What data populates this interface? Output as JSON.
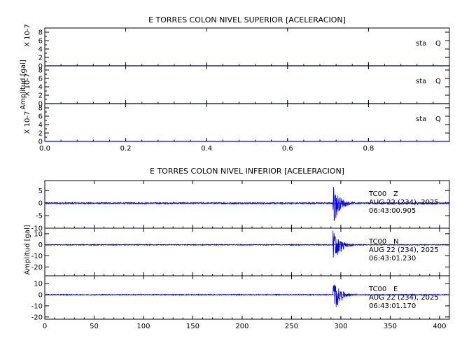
{
  "colors": {
    "trace": "#0000ff",
    "axis": "#000000",
    "background": "#ffffff"
  },
  "chart_data": [
    {
      "type": "line",
      "title": "E TORRES COLON NIVEL SUPERIOR [ACELERACION]",
      "ylabel": "Amplitud [gal]",
      "xlim": [
        0.0,
        1.0
      ],
      "x_ticks": [
        "0.0",
        "0.2",
        "0.4",
        "0.6",
        "0.8"
      ],
      "x_tick_values": [
        0.0,
        0.2,
        0.4,
        0.6,
        0.8
      ],
      "panels": [
        {
          "label_line1": "sta",
          "label_line2": "Q",
          "scale": "X 10-7",
          "ylim": [
            0,
            9
          ],
          "y_ticks": [
            "0",
            "2",
            "4",
            "6",
            "8"
          ],
          "y_tick_values": [
            0,
            2,
            4,
            6,
            8
          ],
          "baseline": 0
        },
        {
          "label_line1": "sta",
          "label_line2": "Q",
          "scale": "X 10-7",
          "ylim": [
            0,
            9
          ],
          "y_ticks": [
            "0",
            "2",
            "4",
            "6",
            "8"
          ],
          "y_tick_values": [
            0,
            2,
            4,
            6,
            8
          ],
          "baseline": 0
        },
        {
          "label_line1": "sta",
          "label_line2": "Q",
          "scale": "X 10-7",
          "ylim": [
            0,
            9
          ],
          "y_ticks": [
            "0",
            "2",
            "4",
            "6",
            "8"
          ],
          "y_tick_values": [
            0,
            2,
            4,
            6,
            8
          ],
          "baseline": 0
        }
      ]
    },
    {
      "type": "line",
      "title": "E TORRES COLON NIVEL INFERIOR [ACELERACION]",
      "ylabel": "Amplitud [gal]",
      "xlim": [
        0,
        410
      ],
      "x_ticks": [
        "0",
        "50",
        "100",
        "150",
        "200",
        "250",
        "300",
        "350",
        "400"
      ],
      "x_tick_values": [
        0,
        50,
        100,
        150,
        200,
        250,
        300,
        350,
        400
      ],
      "panels": [
        {
          "station": "TC00",
          "component": "Z",
          "date": "AUG 22 (234), 2025",
          "time": "06:43:00.905",
          "ylim": [
            -10,
            9
          ],
          "y_ticks": [
            "5",
            "0",
            "-5",
            "-10"
          ],
          "y_tick_values": [
            5,
            0,
            -5,
            -10
          ],
          "noise_amp": 0.3,
          "event": {
            "onset": 292,
            "peak_pos": 8,
            "peak_neg": -10,
            "decay": 6,
            "tail": 340
          }
        },
        {
          "station": "TC00",
          "component": "N",
          "date": "AUG 22 (234), 2025",
          "time": "06:43:01.230",
          "ylim": [
            -28,
            15
          ],
          "y_ticks": [
            "10",
            "0",
            "-10",
            "-20"
          ],
          "y_tick_values": [
            10,
            0,
            -10,
            -20
          ],
          "noise_amp": 0.4,
          "event": {
            "onset": 292,
            "peak_pos": 14,
            "peak_neg": -26,
            "decay": 6,
            "tail": 340
          }
        },
        {
          "station": "TC00",
          "component": "E",
          "date": "AUG 22 (234), 2025",
          "time": "06:43:01.170",
          "ylim": [
            -22,
            17
          ],
          "y_ticks": [
            "10",
            "0",
            "-10",
            "-20"
          ],
          "y_tick_values": [
            10,
            0,
            -10,
            -20
          ],
          "noise_amp": 0.4,
          "event": {
            "onset": 292,
            "peak_pos": 15,
            "peak_neg": -21,
            "decay": 6,
            "tail": 340
          }
        }
      ]
    }
  ]
}
